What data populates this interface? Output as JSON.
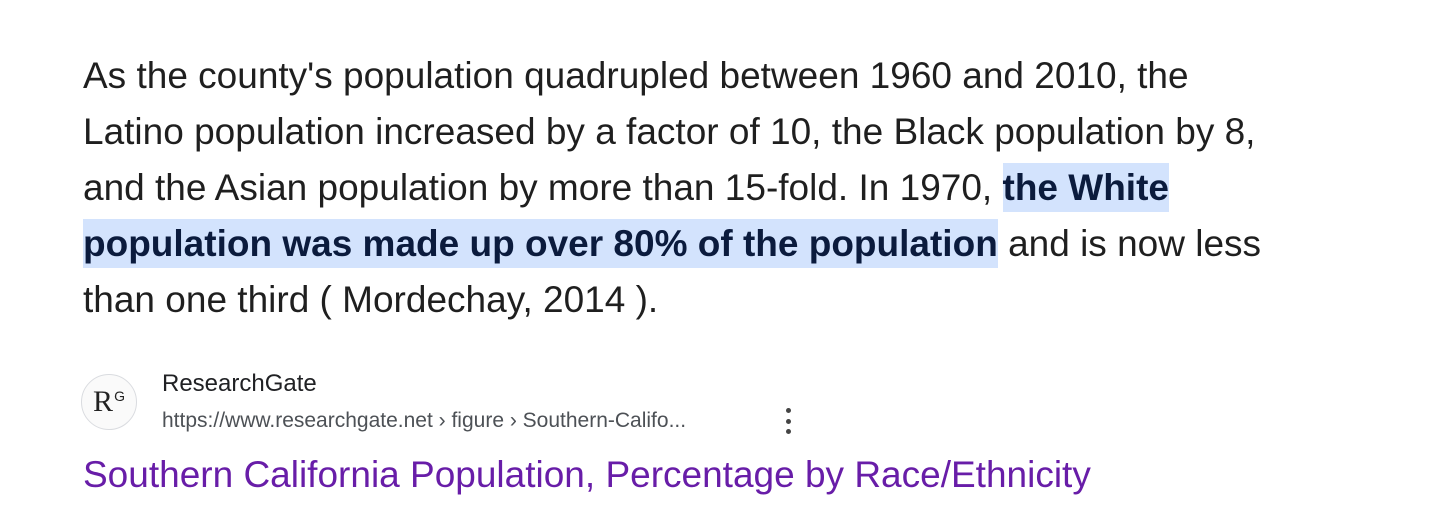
{
  "snippet": {
    "line1": "As the county's population quadrupled between 1960 and 2010, the",
    "line2": "Latino population increased by a factor of 10, the Black population by 8,",
    "line3_pre": "and the Asian population by more than 15-fold. In 1970, ",
    "line3_hl": "the White",
    "line4_hl": "population was made up over 80% of the population",
    "line4_post": " and is now less",
    "line5": "than one third ( Mordechay, 2014 )."
  },
  "source": {
    "logo_text": "R",
    "logo_sup": "G",
    "site_name": "ResearchGate",
    "url": "https://www.researchgate.net › figure › Southern-Califo...",
    "more_icon": "more-vert-icon"
  },
  "result_title": "Southern California Population, Percentage by Race/Ethnicity",
  "colors": {
    "highlight": "#d3e3fd",
    "link": "#681da8"
  }
}
